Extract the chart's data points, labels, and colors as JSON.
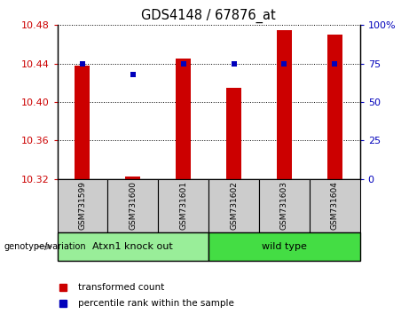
{
  "title": "GDS4148 / 67876_at",
  "samples": [
    "GSM731599",
    "GSM731600",
    "GSM731601",
    "GSM731602",
    "GSM731603",
    "GSM731604"
  ],
  "red_values": [
    10.438,
    10.323,
    10.445,
    10.415,
    10.475,
    10.47
  ],
  "blue_pct": [
    75,
    68,
    75,
    75,
    75,
    75
  ],
  "ylim": [
    10.32,
    10.48
  ],
  "yticks": [
    10.32,
    10.36,
    10.4,
    10.44,
    10.48
  ],
  "ytick_labels": [
    "10.32",
    "10.36",
    "10.40",
    "10.44",
    "10.48"
  ],
  "right_yticks": [
    0,
    25,
    50,
    75,
    100
  ],
  "right_ylabels": [
    "0",
    "25",
    "50",
    "75",
    "100%"
  ],
  "group1_label": "Atxn1 knock out",
  "group2_label": "wild type",
  "group_row_label": "genotype/variation",
  "legend_red": "transformed count",
  "legend_blue": "percentile rank within the sample",
  "bar_color": "#cc0000",
  "blue_color": "#0000bb",
  "group1_bg": "#99ee99",
  "group2_bg": "#44dd44",
  "sample_bg": "#cccccc",
  "ylabel_color": "#cc0000",
  "right_ylabel_color": "#0000bb",
  "bar_width": 0.3
}
